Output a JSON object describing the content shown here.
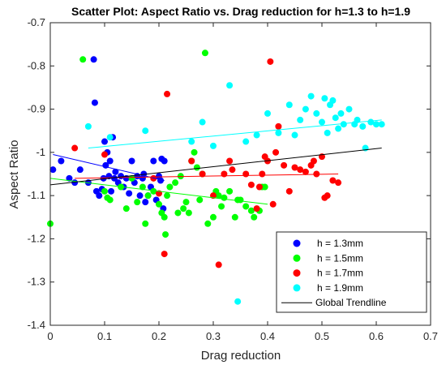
{
  "chart_data": {
    "type": "scatter",
    "title": "Scatter Plot: Aspect Ratio vs. Drag reduction for h=1.3 to h=1.9",
    "xlabel": "Drag reduction",
    "ylabel": "Aspect Ratio",
    "xlim": [
      0,
      0.7
    ],
    "ylim": [
      -1.4,
      -0.7
    ],
    "xticks": [
      0,
      0.1,
      0.2,
      0.3,
      0.4,
      0.5,
      0.6,
      0.7
    ],
    "xtick_labels": [
      "0",
      "0.1",
      "0.2",
      "0.3",
      "0.4",
      "0.5",
      "0.6",
      "0.7"
    ],
    "yticks": [
      -1.4,
      -1.3,
      -1.2,
      -1.1,
      -1.0,
      -0.9,
      -0.8,
      -0.7
    ],
    "ytick_labels": [
      "-1.4",
      "-1.3",
      "-1.2",
      "-1.1",
      "-1",
      "-0.9",
      "-0.8",
      "-0.7"
    ],
    "grid": false,
    "legend_position": "bottom-right",
    "series": [
      {
        "name": "h = 1.3mm",
        "color": "#0000ff",
        "points": [
          [
            0.005,
            -1.04
          ],
          [
            0.02,
            -1.02
          ],
          [
            0.035,
            -1.06
          ],
          [
            0.045,
            -1.07
          ],
          [
            0.055,
            -1.04
          ],
          [
            0.07,
            -1.07
          ],
          [
            0.08,
            -0.785
          ],
          [
            0.082,
            -0.885
          ],
          [
            0.085,
            -1.09
          ],
          [
            0.09,
            -1.1
          ],
          [
            0.095,
            -1.085
          ],
          [
            0.098,
            -1.06
          ],
          [
            0.1,
            -0.975
          ],
          [
            0.102,
            -1.03
          ],
          [
            0.105,
            -1.0
          ],
          [
            0.108,
            -1.055
          ],
          [
            0.11,
            -1.02
          ],
          [
            0.112,
            -1.09
          ],
          [
            0.115,
            -0.965
          ],
          [
            0.118,
            -1.06
          ],
          [
            0.12,
            -1.045
          ],
          [
            0.125,
            -1.07
          ],
          [
            0.13,
            -1.055
          ],
          [
            0.135,
            -1.08
          ],
          [
            0.14,
            -1.06
          ],
          [
            0.145,
            -1.095
          ],
          [
            0.15,
            -1.02
          ],
          [
            0.155,
            -1.07
          ],
          [
            0.16,
            -1.055
          ],
          [
            0.165,
            -1.1
          ],
          [
            0.17,
            -1.06
          ],
          [
            0.172,
            -1.05
          ],
          [
            0.175,
            -1.115
          ],
          [
            0.18,
            -1.1
          ],
          [
            0.185,
            -1.08
          ],
          [
            0.19,
            -1.02
          ],
          [
            0.195,
            -1.11
          ],
          [
            0.2,
            -1.055
          ],
          [
            0.203,
            -1.065
          ],
          [
            0.205,
            -1.015
          ],
          [
            0.208,
            -1.13
          ],
          [
            0.21,
            -1.02
          ]
        ]
      },
      {
        "name": "h = 1.5mm",
        "color": "#00ff00",
        "points": [
          [
            0.0,
            -1.165
          ],
          [
            0.06,
            -0.785
          ],
          [
            0.1,
            -1.09
          ],
          [
            0.105,
            -1.105
          ],
          [
            0.11,
            -1.11
          ],
          [
            0.13,
            -1.08
          ],
          [
            0.14,
            -1.13
          ],
          [
            0.15,
            -1.06
          ],
          [
            0.16,
            -1.115
          ],
          [
            0.17,
            -1.08
          ],
          [
            0.175,
            -1.165
          ],
          [
            0.18,
            -1.1
          ],
          [
            0.19,
            -1.09
          ],
          [
            0.2,
            -1.12
          ],
          [
            0.205,
            -1.14
          ],
          [
            0.21,
            -1.15
          ],
          [
            0.212,
            -1.19
          ],
          [
            0.215,
            -1.1
          ],
          [
            0.22,
            -1.08
          ],
          [
            0.23,
            -1.07
          ],
          [
            0.235,
            -1.14
          ],
          [
            0.24,
            -1.055
          ],
          [
            0.245,
            -1.13
          ],
          [
            0.25,
            -1.115
          ],
          [
            0.255,
            -1.14
          ],
          [
            0.26,
            -1.02
          ],
          [
            0.265,
            -1.0
          ],
          [
            0.27,
            -1.035
          ],
          [
            0.275,
            -1.11
          ],
          [
            0.28,
            -1.05
          ],
          [
            0.285,
            -0.77
          ],
          [
            0.29,
            -1.165
          ],
          [
            0.3,
            -1.15
          ],
          [
            0.305,
            -1.09
          ],
          [
            0.31,
            -1.1
          ],
          [
            0.315,
            -1.125
          ],
          [
            0.32,
            -1.105
          ],
          [
            0.33,
            -1.09
          ],
          [
            0.34,
            -1.15
          ],
          [
            0.345,
            -1.11
          ],
          [
            0.35,
            -1.11
          ],
          [
            0.36,
            -1.125
          ],
          [
            0.37,
            -1.135
          ],
          [
            0.375,
            -1.15
          ],
          [
            0.385,
            -1.135
          ],
          [
            0.39,
            -1.08
          ],
          [
            0.395,
            -1.08
          ]
        ]
      },
      {
        "name": "h = 1.7mm",
        "color": "#ff0000",
        "points": [
          [
            0.045,
            -0.99
          ],
          [
            0.1,
            -1.005
          ],
          [
            0.19,
            -1.06
          ],
          [
            0.2,
            -1.095
          ],
          [
            0.21,
            -1.235
          ],
          [
            0.215,
            -0.865
          ],
          [
            0.26,
            -1.02
          ],
          [
            0.28,
            -1.05
          ],
          [
            0.3,
            -1.1
          ],
          [
            0.31,
            -1.26
          ],
          [
            0.32,
            -1.05
          ],
          [
            0.33,
            -1.02
          ],
          [
            0.335,
            -1.04
          ],
          [
            0.36,
            -1.05
          ],
          [
            0.37,
            -1.075
          ],
          [
            0.38,
            -1.13
          ],
          [
            0.385,
            -1.08
          ],
          [
            0.39,
            -1.05
          ],
          [
            0.395,
            -1.01
          ],
          [
            0.4,
            -1.02
          ],
          [
            0.405,
            -0.79
          ],
          [
            0.41,
            -1.12
          ],
          [
            0.415,
            -1.0
          ],
          [
            0.42,
            -0.94
          ],
          [
            0.43,
            -1.03
          ],
          [
            0.44,
            -1.09
          ],
          [
            0.45,
            -1.035
          ],
          [
            0.46,
            -1.04
          ],
          [
            0.47,
            -1.045
          ],
          [
            0.48,
            -1.03
          ],
          [
            0.485,
            -1.02
          ],
          [
            0.49,
            -1.05
          ],
          [
            0.5,
            -1.01
          ],
          [
            0.505,
            -1.105
          ],
          [
            0.51,
            -1.1
          ],
          [
            0.52,
            -1.065
          ],
          [
            0.53,
            -1.07
          ]
        ]
      },
      {
        "name": "h = 1.9mm",
        "color": "#00ffff",
        "points": [
          [
            0.07,
            -0.94
          ],
          [
            0.11,
            -0.965
          ],
          [
            0.175,
            -0.95
          ],
          [
            0.26,
            -0.975
          ],
          [
            0.28,
            -0.93
          ],
          [
            0.3,
            -0.985
          ],
          [
            0.33,
            -0.845
          ],
          [
            0.345,
            -1.345
          ],
          [
            0.36,
            -0.975
          ],
          [
            0.38,
            -0.96
          ],
          [
            0.4,
            -0.91
          ],
          [
            0.42,
            -0.955
          ],
          [
            0.44,
            -0.89
          ],
          [
            0.45,
            -0.96
          ],
          [
            0.46,
            -0.925
          ],
          [
            0.47,
            -0.9
          ],
          [
            0.48,
            -0.87
          ],
          [
            0.49,
            -0.91
          ],
          [
            0.5,
            -0.93
          ],
          [
            0.505,
            -0.875
          ],
          [
            0.51,
            -0.955
          ],
          [
            0.515,
            -0.89
          ],
          [
            0.52,
            -0.88
          ],
          [
            0.525,
            -0.92
          ],
          [
            0.53,
            -0.945
          ],
          [
            0.535,
            -0.91
          ],
          [
            0.54,
            -0.935
          ],
          [
            0.55,
            -0.9
          ],
          [
            0.56,
            -0.935
          ],
          [
            0.565,
            -0.925
          ],
          [
            0.575,
            -0.94
          ],
          [
            0.58,
            -0.99
          ],
          [
            0.59,
            -0.93
          ],
          [
            0.6,
            -0.935
          ],
          [
            0.61,
            -0.935
          ]
        ]
      }
    ],
    "trendlines": [
      {
        "series": "h = 1.3mm",
        "color": "#0000ff",
        "x": [
          0.005,
          0.21
        ],
        "y": [
          -1.005,
          -1.065
        ]
      },
      {
        "series": "h = 1.5mm",
        "color": "#00ff00",
        "x": [
          0.0,
          0.4
        ],
        "y": [
          -1.06,
          -1.12
        ]
      },
      {
        "series": "h = 1.7mm",
        "color": "#ff0000",
        "x": [
          0.045,
          0.53
        ],
        "y": [
          -1.06,
          -1.05
        ]
      },
      {
        "series": "h = 1.9mm",
        "color": "#00ffff",
        "x": [
          0.07,
          0.61
        ],
        "y": [
          -0.99,
          -0.925
        ]
      },
      {
        "series": "Global Trendline",
        "color": "#000000",
        "x": [
          0.0,
          0.61
        ],
        "y": [
          -1.075,
          -0.99
        ]
      }
    ],
    "legend": [
      {
        "label": "h = 1.3mm",
        "color": "#0000ff",
        "marker": "dot"
      },
      {
        "label": "h = 1.5mm",
        "color": "#00ff00",
        "marker": "dot"
      },
      {
        "label": "h = 1.7mm",
        "color": "#ff0000",
        "marker": "dot"
      },
      {
        "label": "h = 1.9mm",
        "color": "#00ffff",
        "marker": "dot"
      },
      {
        "label": "Global Trendline",
        "color": "#000000",
        "marker": "line"
      }
    ]
  }
}
